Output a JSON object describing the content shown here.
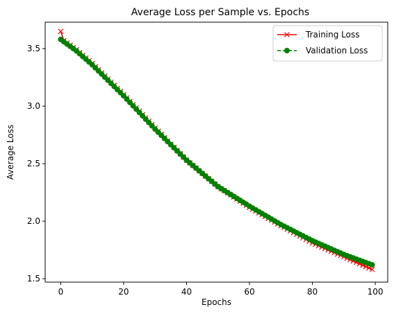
{
  "chart_data": {
    "type": "line",
    "title": "Average Loss per Sample vs. Epochs",
    "xlabel": "Epochs",
    "ylabel": "Average Loss",
    "xlim": [
      -4.95,
      103.95
    ],
    "ylim": [
      1.47,
      3.73
    ],
    "x_ticks": [
      0,
      20,
      40,
      60,
      80,
      100
    ],
    "y_ticks": [
      1.5,
      2.0,
      2.5,
      3.0,
      3.5
    ],
    "x_tick_labels": [
      "0",
      "20",
      "40",
      "60",
      "80",
      "100"
    ],
    "y_tick_labels": [
      "1.5",
      "2.0",
      "2.5",
      "3.0",
      "3.5"
    ],
    "grid": false,
    "legend": "top-right",
    "x_range": [
      0,
      99
    ],
    "series": [
      {
        "name": "Training Loss",
        "color": "#ff0000",
        "marker": "x",
        "linestyle": "solid",
        "anchors": [
          [
            0,
            3.65
          ],
          [
            1,
            3.57
          ],
          [
            5,
            3.49
          ],
          [
            10,
            3.37
          ],
          [
            20,
            3.1
          ],
          [
            30,
            2.81
          ],
          [
            40,
            2.53
          ],
          [
            50,
            2.3
          ],
          [
            60,
            2.12
          ],
          [
            70,
            1.96
          ],
          [
            80,
            1.81
          ],
          [
            90,
            1.69
          ],
          [
            99,
            1.58
          ]
        ]
      },
      {
        "name": "Validation Loss",
        "color": "#008000",
        "marker": "o",
        "linestyle": "dashed",
        "anchors": [
          [
            0,
            3.58
          ],
          [
            5,
            3.48
          ],
          [
            10,
            3.36
          ],
          [
            20,
            3.09
          ],
          [
            30,
            2.8
          ],
          [
            40,
            2.53
          ],
          [
            50,
            2.3
          ],
          [
            60,
            2.13
          ],
          [
            70,
            1.97
          ],
          [
            80,
            1.83
          ],
          [
            90,
            1.71
          ],
          [
            99,
            1.62
          ]
        ]
      }
    ]
  }
}
